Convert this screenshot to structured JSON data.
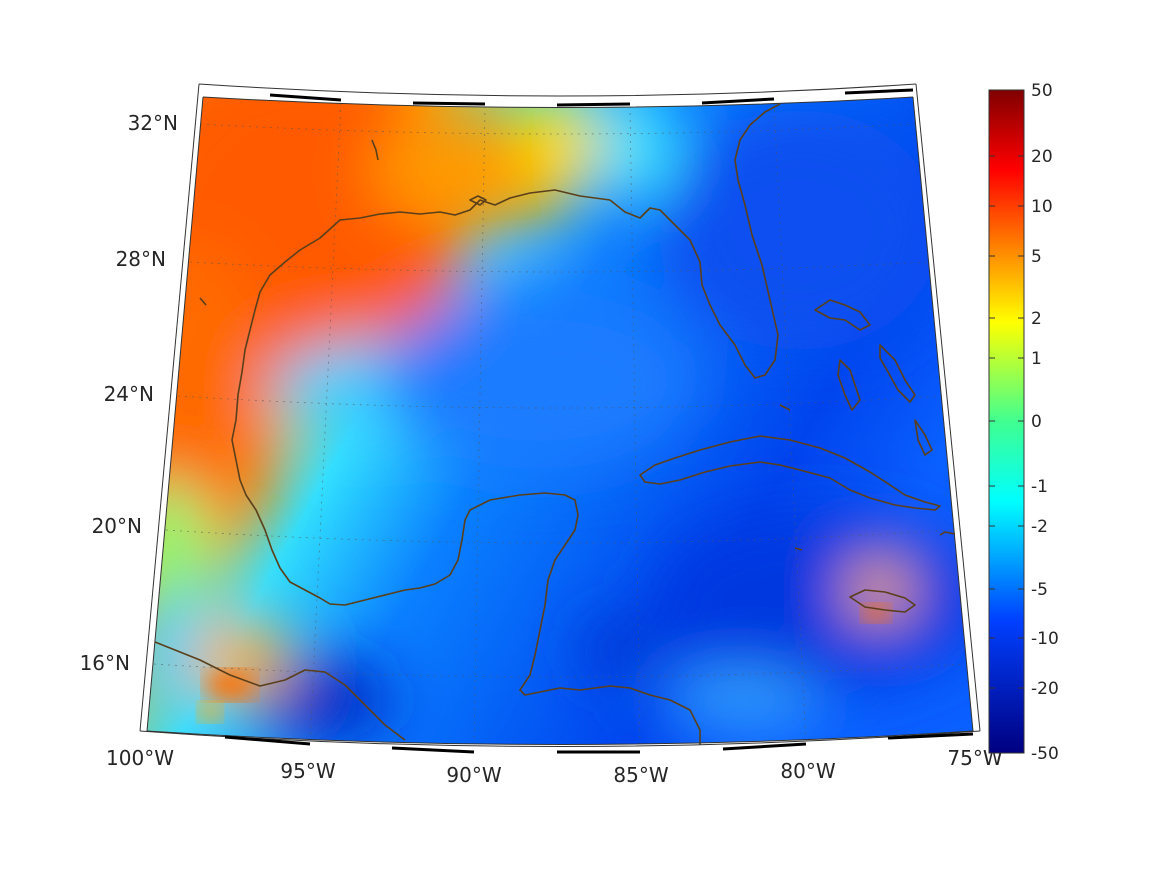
{
  "map": {
    "region": "Gulf of Mexico / Caribbean",
    "lon_labels": [
      "100°W",
      "95°W",
      "90°W",
      "85°W",
      "80°W",
      "75°W"
    ],
    "lat_labels": [
      "32°N",
      "28°N",
      "24°N",
      "20°N",
      "16°N"
    ],
    "coastline_color": "#5a3f1a",
    "graticule": "dotted"
  },
  "colorbar": {
    "colormap": "jet",
    "ticks": [
      "50",
      "20",
      "10",
      "5",
      "2",
      "1",
      "0",
      "-1",
      "-2",
      "-5",
      "-10",
      "-20",
      "-50"
    ]
  }
}
